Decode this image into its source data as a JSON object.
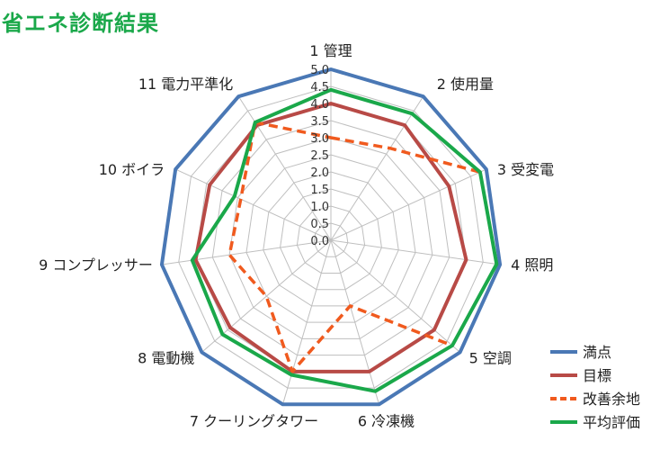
{
  "title": "省エネ診断結果",
  "colors": {
    "title": "#1aa84a",
    "grid": "#bfbfbf",
    "axis": "#bfbfbf"
  },
  "chart_data": {
    "type": "radar",
    "title": "省エネ診断結果",
    "categories": [
      "1 管理",
      "2 使用量",
      "3 受変電",
      "4 照明",
      "5 空調",
      "6 冷凍機",
      "7 クーリングタワー",
      "8 電動機",
      "9 コンプレッサー",
      "10 ボイラ",
      "11 電力平準化"
    ],
    "r_range": [
      0,
      5.0
    ],
    "r_ticks": [
      "0.0",
      "0.5",
      "1.0",
      "1.5",
      "2.0",
      "2.5",
      "3.0",
      "3.5",
      "4.0",
      "4.5",
      "5.0"
    ],
    "grid": true,
    "legend_position": "right-bottom",
    "series": [
      {
        "name": "満点",
        "color": "#4a78b5",
        "dash": "none",
        "values": [
          5,
          5,
          5,
          5,
          5,
          5,
          5,
          5,
          5,
          5,
          5
        ]
      },
      {
        "name": "目標",
        "color": "#b84a46",
        "dash": "none",
        "values": [
          4.0,
          4.0,
          3.8,
          4.0,
          4.0,
          4.0,
          4.0,
          3.9,
          4.0,
          3.9,
          4.0
        ]
      },
      {
        "name": "改善余地",
        "color": "#f05a1e",
        "dash": "dashed",
        "values": [
          3.0,
          3.2,
          4.8,
          4.9,
          4.7,
          2.0,
          4.0,
          2.5,
          3.0,
          2.9,
          4.1
        ]
      },
      {
        "name": "平均評価",
        "color": "#1aa84a",
        "dash": "none",
        "values": [
          4.4,
          4.4,
          4.8,
          4.9,
          4.7,
          4.6,
          4.1,
          4.2,
          4.1,
          3.1,
          4.1
        ]
      }
    ]
  }
}
